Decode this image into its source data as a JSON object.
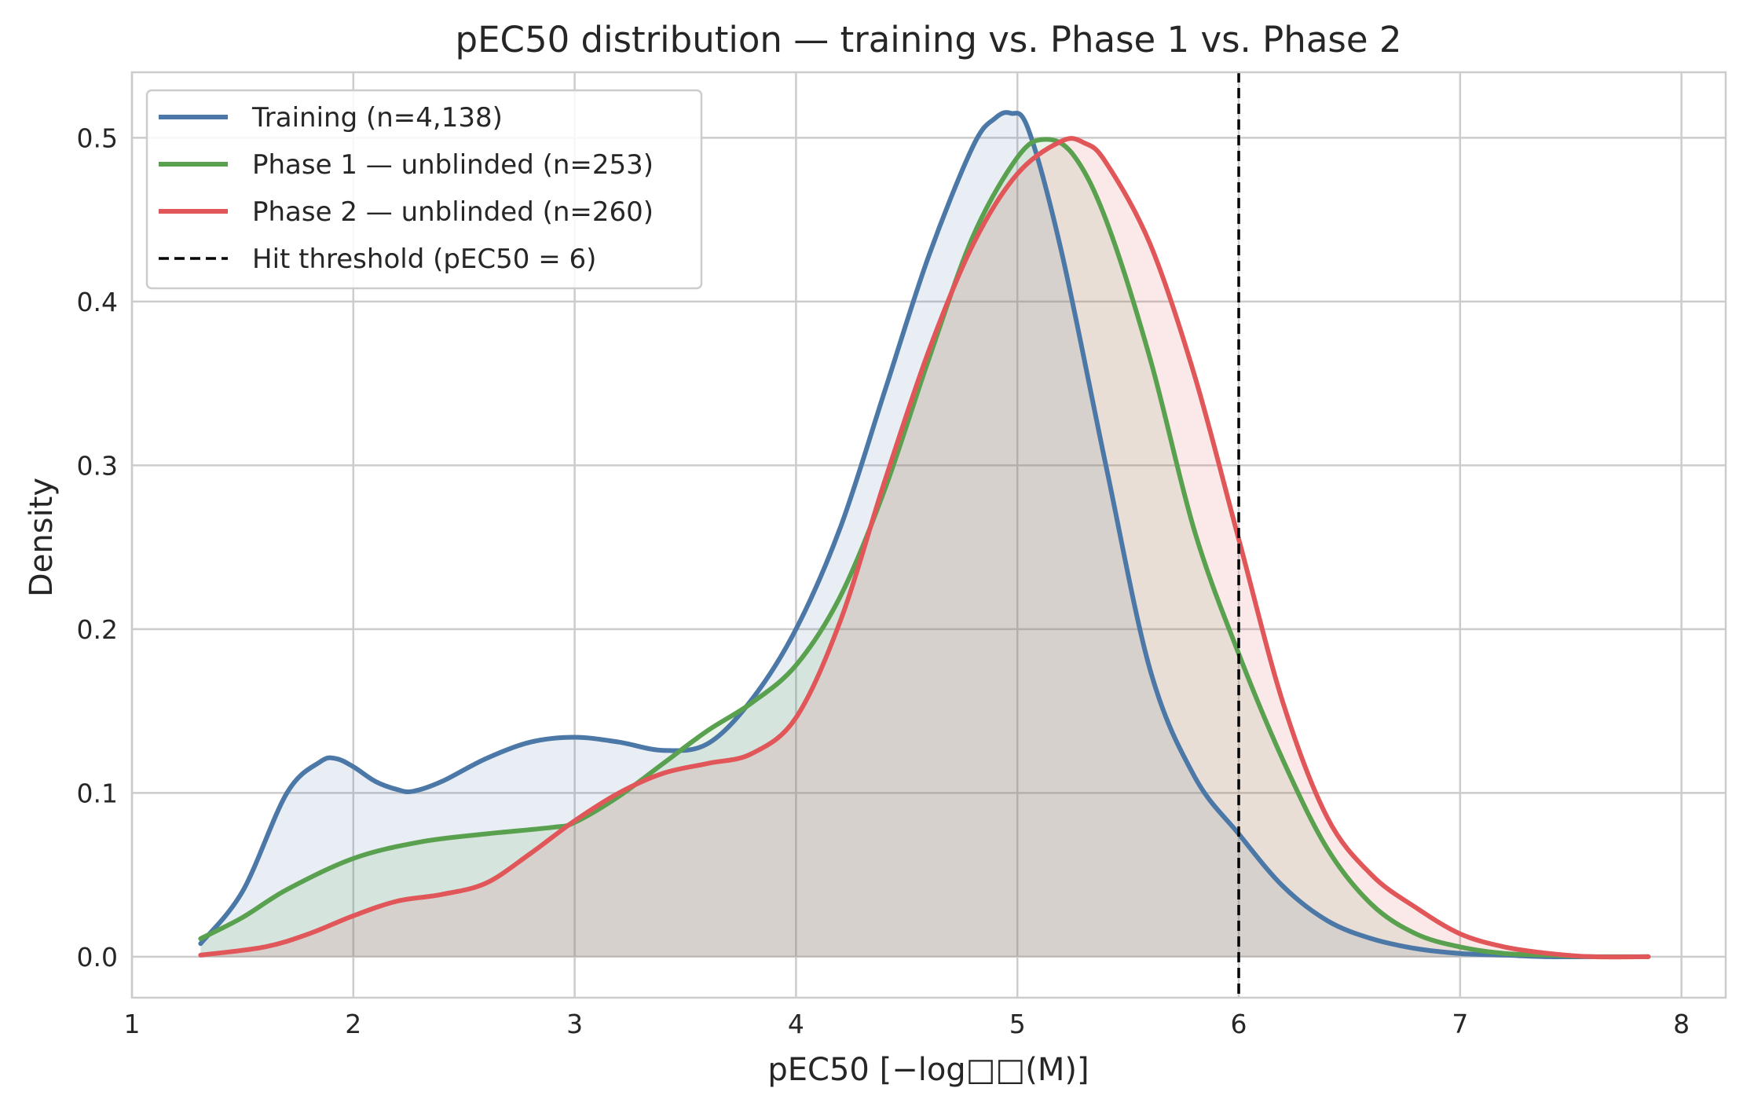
{
  "chart_data": {
    "type": "area",
    "title": "pEC50 distribution — training vs. Phase 1 vs. Phase 2",
    "xlabel": "pEC50  [−log□□(M)]",
    "ylabel": "Density",
    "xlim": [
      1.0,
      8.2
    ],
    "ylim": [
      -0.025,
      0.54
    ],
    "xticks": [
      1,
      2,
      3,
      4,
      5,
      6,
      7,
      8
    ],
    "yticks": [
      0.0,
      0.1,
      0.2,
      0.3,
      0.4,
      0.5
    ],
    "xtick_labels": [
      "1",
      "2",
      "3",
      "4",
      "5",
      "6",
      "7",
      "8"
    ],
    "ytick_labels": [
      "0.0",
      "0.1",
      "0.2",
      "0.3",
      "0.4",
      "0.5"
    ],
    "grid": true,
    "legend_position": "top-left",
    "series": [
      {
        "name": "Training (n=4,138)",
        "color": "#4c78a8",
        "fill_opacity": 0.13,
        "x": [
          1.31,
          1.5,
          1.7,
          1.85,
          1.92,
          2.0,
          2.1,
          2.2,
          2.27,
          2.4,
          2.6,
          2.8,
          3.0,
          3.2,
          3.4,
          3.6,
          3.8,
          4.0,
          4.2,
          4.4,
          4.6,
          4.8,
          4.9,
          4.97,
          5.05,
          5.2,
          5.4,
          5.6,
          5.8,
          6.0,
          6.2,
          6.4,
          6.6,
          6.8,
          7.0,
          7.2,
          7.4,
          7.6,
          7.85
        ],
        "y": [
          0.008,
          0.04,
          0.1,
          0.119,
          0.121,
          0.116,
          0.107,
          0.102,
          0.101,
          0.107,
          0.121,
          0.131,
          0.134,
          0.131,
          0.126,
          0.13,
          0.157,
          0.2,
          0.262,
          0.345,
          0.428,
          0.495,
          0.512,
          0.515,
          0.505,
          0.43,
          0.3,
          0.175,
          0.11,
          0.075,
          0.043,
          0.022,
          0.011,
          0.005,
          0.002,
          0.001,
          0.0,
          0.0,
          0.0
        ]
      },
      {
        "name": "Phase 1 — unblinded (n=253)",
        "color": "#59a14f",
        "fill_opacity": 0.13,
        "x": [
          1.31,
          1.5,
          1.7,
          2.0,
          2.3,
          2.6,
          2.9,
          3.0,
          3.2,
          3.4,
          3.6,
          3.8,
          4.0,
          4.2,
          4.4,
          4.6,
          4.8,
          5.0,
          5.12,
          5.25,
          5.4,
          5.6,
          5.8,
          6.0,
          6.2,
          6.4,
          6.6,
          6.8,
          7.0,
          7.2,
          7.4,
          7.6,
          7.85
        ],
        "y": [
          0.011,
          0.024,
          0.041,
          0.06,
          0.07,
          0.075,
          0.079,
          0.082,
          0.098,
          0.118,
          0.138,
          0.155,
          0.178,
          0.22,
          0.285,
          0.365,
          0.44,
          0.488,
          0.499,
          0.49,
          0.45,
          0.365,
          0.26,
          0.185,
          0.12,
          0.066,
          0.032,
          0.014,
          0.006,
          0.002,
          0.001,
          0.0,
          0.0
        ]
      },
      {
        "name": "Phase 2 — unblinded (n=260)",
        "color": "#e15759",
        "fill_opacity": 0.13,
        "x": [
          1.31,
          1.6,
          1.8,
          2.0,
          2.2,
          2.4,
          2.6,
          2.8,
          3.0,
          3.2,
          3.4,
          3.6,
          3.8,
          4.0,
          4.2,
          4.4,
          4.6,
          4.8,
          5.0,
          5.2,
          5.3,
          5.4,
          5.6,
          5.8,
          6.0,
          6.2,
          6.4,
          6.6,
          6.8,
          7.0,
          7.2,
          7.4,
          7.6,
          7.85
        ],
        "y": [
          0.001,
          0.006,
          0.014,
          0.025,
          0.034,
          0.038,
          0.045,
          0.063,
          0.083,
          0.1,
          0.112,
          0.118,
          0.124,
          0.146,
          0.205,
          0.29,
          0.37,
          0.435,
          0.478,
          0.498,
          0.497,
          0.485,
          0.435,
          0.355,
          0.255,
          0.155,
          0.085,
          0.05,
          0.03,
          0.014,
          0.006,
          0.002,
          0.0,
          0.0
        ]
      }
    ],
    "threshold": {
      "name": "Hit threshold (pEC50 = 6)",
      "x": 6,
      "color": "#000000"
    }
  }
}
